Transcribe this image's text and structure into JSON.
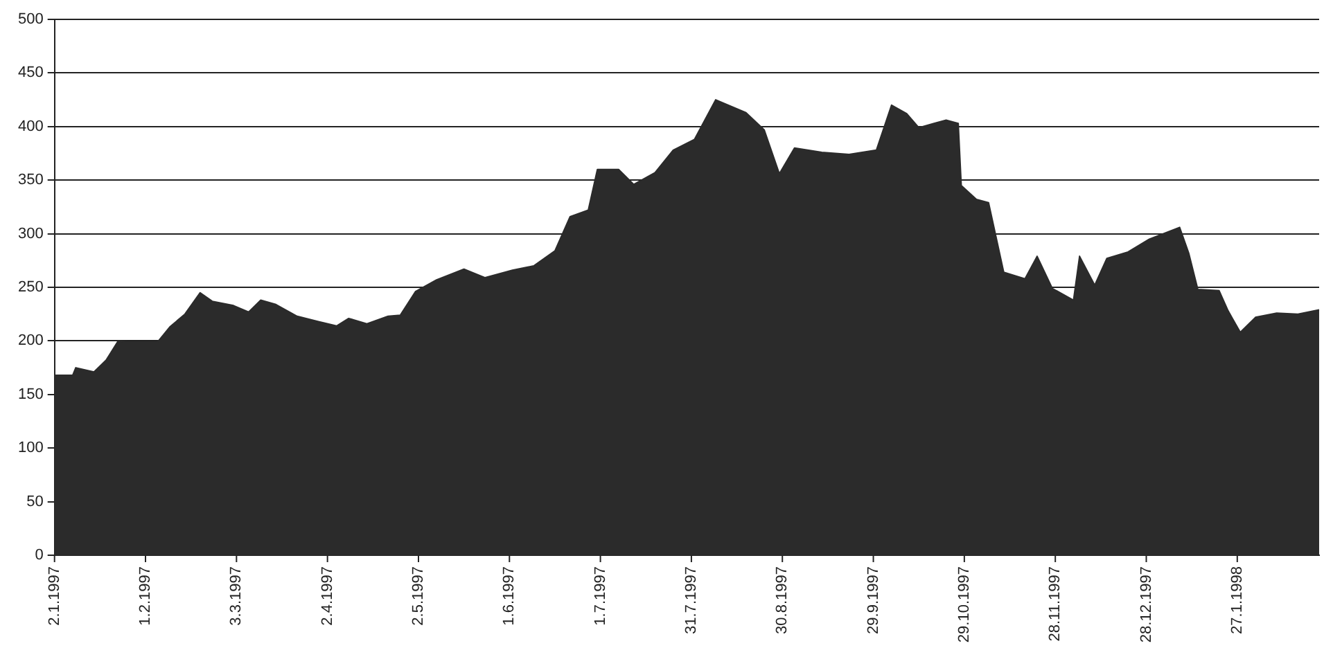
{
  "chart_data": {
    "type": "area",
    "color": "#2b2b2b",
    "x": [
      "1997-01-02",
      "1997-01-08",
      "1997-01-09",
      "1997-01-15",
      "1997-01-19",
      "1997-01-23",
      "1997-01-26",
      "1997-02-05",
      "1997-02-09",
      "1997-02-14",
      "1997-02-19",
      "1997-02-23",
      "1997-03-02",
      "1997-03-07",
      "1997-03-11",
      "1997-03-16",
      "1997-03-23",
      "1997-03-30",
      "1997-04-05",
      "1997-04-09",
      "1997-04-15",
      "1997-04-22",
      "1997-04-26",
      "1997-05-01",
      "1997-05-08",
      "1997-05-17",
      "1997-05-24",
      "1997-06-02",
      "1997-06-09",
      "1997-06-16",
      "1997-06-21",
      "1997-06-27",
      "1997-06-30",
      "1997-07-07",
      "1997-07-12",
      "1997-07-19",
      "1997-07-25",
      "1997-08-01",
      "1997-08-08",
      "1997-08-18",
      "1997-08-24",
      "1997-08-29",
      "1997-09-03",
      "1997-09-12",
      "1997-09-21",
      "1997-09-30",
      "1997-10-05",
      "1997-10-10",
      "1997-10-14",
      "1997-10-19",
      "1997-10-23",
      "1997-10-27",
      "1997-10-28",
      "1997-11-02",
      "1997-11-06",
      "1997-11-11",
      "1997-11-18",
      "1997-11-22",
      "1997-11-27",
      "1997-12-04",
      "1997-12-06",
      "1997-12-11",
      "1997-12-15",
      "1997-12-22",
      "1997-12-29",
      "1998-01-08",
      "1998-01-11",
      "1998-01-14",
      "1998-01-21",
      "1998-01-24",
      "1998-01-28",
      "1998-02-02",
      "1998-02-09",
      "1998-02-16",
      "1998-02-23"
    ],
    "values": [
      168,
      168,
      175,
      171,
      182,
      200,
      199,
      199,
      213,
      225,
      245,
      237,
      233,
      227,
      238,
      234,
      223,
      218,
      214,
      221,
      216,
      223,
      224,
      246,
      257,
      267,
      259,
      266,
      270,
      284,
      316,
      322,
      360,
      360,
      346,
      357,
      378,
      388,
      425,
      413,
      397,
      356,
      380,
      376,
      374,
      378,
      420,
      412,
      399,
      403,
      406,
      403,
      345,
      332,
      329,
      264,
      258,
      279,
      249,
      238,
      279,
      252,
      277,
      283,
      295,
      306,
      282,
      248,
      247,
      228,
      208,
      222,
      226,
      225,
      229
    ],
    "xlim": [
      "1997-01-02",
      "1998-02-23"
    ],
    "xticks": [
      {
        "value": "1997-01-02",
        "label": "2.1.1997"
      },
      {
        "value": "1997-02-01",
        "label": "1.2.1997"
      },
      {
        "value": "1997-03-03",
        "label": "3.3.1997"
      },
      {
        "value": "1997-04-02",
        "label": "2.4.1997"
      },
      {
        "value": "1997-05-02",
        "label": "2.5.1997"
      },
      {
        "value": "1997-06-01",
        "label": "1.6.1997"
      },
      {
        "value": "1997-07-01",
        "label": "1.7.1997"
      },
      {
        "value": "1997-07-31",
        "label": "31.7.1997"
      },
      {
        "value": "1997-08-30",
        "label": "30.8.1997"
      },
      {
        "value": "1997-09-29",
        "label": "29.9.1997"
      },
      {
        "value": "1997-10-29",
        "label": "29.10.1997"
      },
      {
        "value": "1997-11-28",
        "label": "28.11.1997"
      },
      {
        "value": "1997-12-28",
        "label": "28.12.1997"
      },
      {
        "value": "1998-01-27",
        "label": "27.1.1998"
      }
    ],
    "ylim": [
      0,
      500
    ],
    "yticks": [
      0,
      50,
      100,
      150,
      200,
      250,
      300,
      350,
      400,
      450,
      500
    ],
    "grid": "y",
    "legend": false
  }
}
